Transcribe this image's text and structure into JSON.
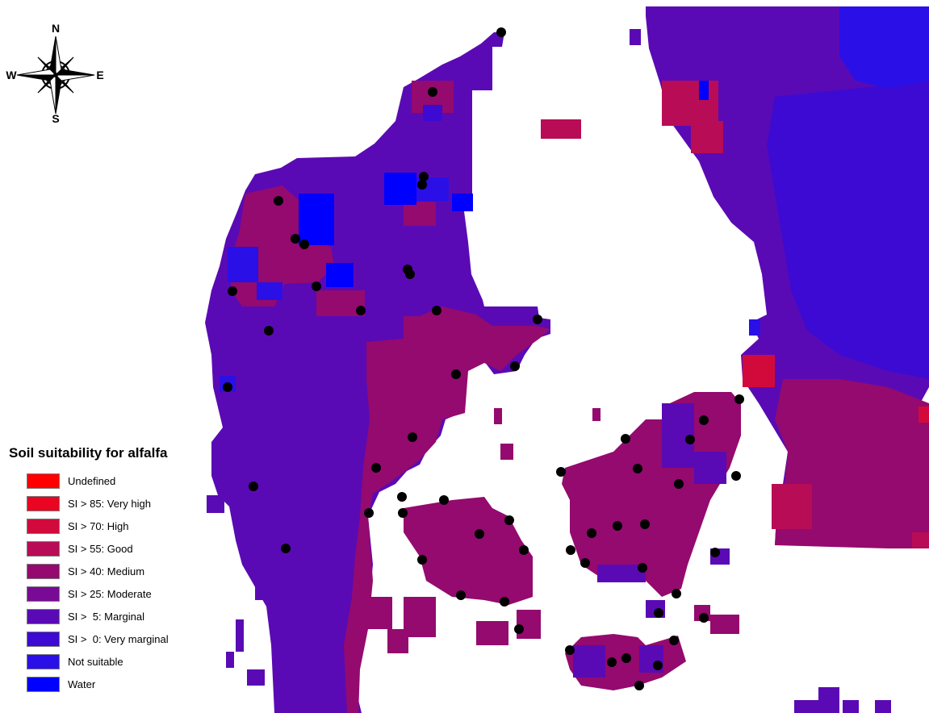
{
  "compass": {
    "north": "N",
    "east": "E",
    "south": "S",
    "west": "W",
    "icon": "compass-rose-icon"
  },
  "legend": {
    "title": "Soil suitability for alfalfa",
    "classes": [
      {
        "label": "Undefined",
        "color": "#ff0000"
      },
      {
        "label": "SI > 85: Very high",
        "color": "#ea0522"
      },
      {
        "label": "SI > 70: High",
        "color": "#d20a3c"
      },
      {
        "label": "SI > 55: Good",
        "color": "#b80c56"
      },
      {
        "label": "SI > 40: Medium",
        "color": "#940a6e"
      },
      {
        "label": "SI > 25: Moderate",
        "color": "#780a96"
      },
      {
        "label": "SI >  5: Marginal",
        "color": "#5a0ab4"
      },
      {
        "label": "SI >  0: Very marginal",
        "color": "#3c0ad2"
      },
      {
        "label": "Not suitable",
        "color": "#2a10e6"
      },
      {
        "label": "Water",
        "color": "#0000ff"
      }
    ]
  },
  "map": {
    "markers": "sample-site"
  }
}
